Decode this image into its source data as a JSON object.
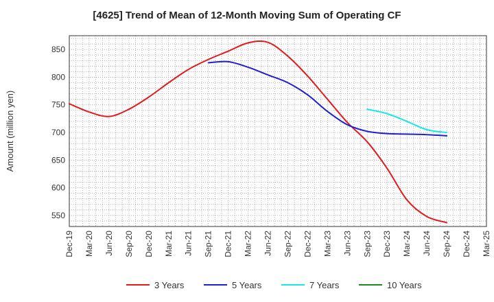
{
  "chart_data": {
    "type": "line",
    "title": "[4625]  Trend of Mean of 12-Month Moving Sum of Operating CF",
    "xlabel": "",
    "ylabel": "Amount (million yen)",
    "ylim": [
      530,
      875
    ],
    "yticks": [
      550,
      600,
      650,
      700,
      750,
      800,
      850
    ],
    "grid": true,
    "legend_position": "bottom",
    "categories": [
      "Dec-19",
      "Mar-20",
      "Jun-20",
      "Sep-20",
      "Dec-20",
      "Mar-21",
      "Jun-21",
      "Sep-21",
      "Dec-21",
      "Mar-22",
      "Jun-22",
      "Sep-22",
      "Dec-22",
      "Mar-23",
      "Jun-23",
      "Sep-23",
      "Dec-23",
      "Mar-24",
      "Jun-24",
      "Sep-24",
      "Dec-24",
      "Mar-25"
    ],
    "series": [
      {
        "name": "3 Years",
        "color": "#e31a1c",
        "values": [
          752,
          737,
          729,
          742,
          764,
          790,
          814,
          832,
          847,
          862,
          863,
          838,
          802,
          760,
          718,
          683,
          635,
          578,
          548,
          537,
          null,
          null
        ]
      },
      {
        "name": "5 Years",
        "color": "#1f1fd1",
        "values": [
          null,
          null,
          null,
          null,
          null,
          null,
          null,
          826,
          828,
          818,
          804,
          790,
          768,
          738,
          714,
          702,
          698,
          697,
          696,
          694,
          null,
          null
        ]
      },
      {
        "name": "7 Years",
        "color": "#19e6e6",
        "values": [
          null,
          null,
          null,
          null,
          null,
          null,
          null,
          null,
          null,
          null,
          null,
          null,
          null,
          null,
          null,
          742,
          734,
          720,
          705,
          700,
          null,
          null
        ]
      },
      {
        "name": "10 Years",
        "color": "#1a8a1a",
        "values": [
          null,
          null,
          null,
          null,
          null,
          null,
          null,
          null,
          null,
          null,
          null,
          null,
          null,
          null,
          null,
          null,
          null,
          null,
          null,
          null,
          null,
          null
        ]
      }
    ]
  }
}
